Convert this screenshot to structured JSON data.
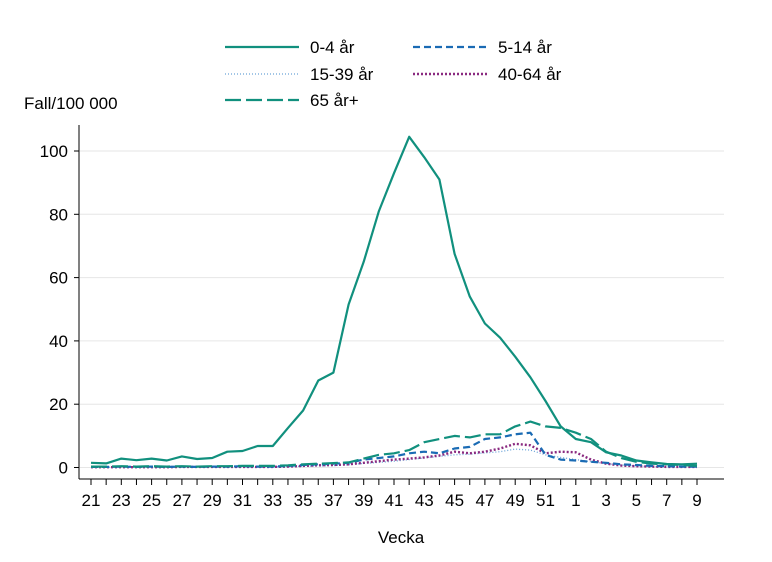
{
  "chart_data": {
    "type": "line",
    "title": "",
    "ylabel": "Fall/100 000",
    "xlabel": "Vecka",
    "ylim": [
      -3,
      110
    ],
    "yticks": [
      0,
      20,
      40,
      60,
      80,
      100
    ],
    "grid": true,
    "legend_position": "top",
    "categories": [
      "21",
      "22",
      "23",
      "24",
      "25",
      "26",
      "27",
      "28",
      "29",
      "30",
      "31",
      "32",
      "33",
      "34",
      "35",
      "36",
      "37",
      "38",
      "39",
      "40",
      "41",
      "42",
      "43",
      "44",
      "45",
      "46",
      "47",
      "48",
      "49",
      "50",
      "51",
      "52",
      "1",
      "2",
      "3",
      "4",
      "5",
      "6",
      "7",
      "8",
      "9"
    ],
    "xtick_labels": [
      "21",
      "23",
      "25",
      "27",
      "29",
      "31",
      "33",
      "35",
      "37",
      "39",
      "41",
      "43",
      "45",
      "47",
      "49",
      "51",
      "1",
      "3",
      "5",
      "7",
      "9"
    ],
    "series": [
      {
        "name": "0-4 år",
        "color": "#11907e",
        "dash": "solid",
        "values": [
          1.5,
          1.3,
          2.8,
          2.3,
          2.8,
          2.2,
          3.5,
          2.7,
          3.0,
          5.0,
          5.2,
          6.8,
          6.8,
          12.5,
          18.0,
          27.5,
          30.0,
          51.5,
          65.0,
          81.0,
          93.0,
          104.5,
          98.0,
          91.0,
          67.5,
          54.0,
          45.5,
          41.0,
          35.0,
          28.5,
          21.0,
          13.0,
          9.0,
          8.0,
          4.8,
          3.8,
          2.2,
          1.6,
          1.1,
          1.0,
          1.2
        ]
      },
      {
        "name": "5-14 år",
        "color": "#1a6bb4",
        "dash": "dashed",
        "values": [
          0.2,
          0.2,
          0.3,
          0.2,
          0.3,
          0.2,
          0.3,
          0.2,
          0.3,
          0.3,
          0.4,
          0.3,
          0.3,
          0.5,
          0.8,
          1.0,
          1.2,
          1.5,
          2.5,
          3.0,
          3.5,
          4.5,
          5.0,
          4.5,
          6.0,
          6.5,
          9.0,
          9.5,
          10.5,
          11.0,
          4.0,
          2.5,
          2.2,
          1.8,
          1.5,
          1.0,
          0.8,
          0.5,
          0.4,
          0.3,
          0.3
        ]
      },
      {
        "name": "15-39 år",
        "color": "#6aa3d8",
        "dash": "dotted",
        "values": [
          0.1,
          0.1,
          0.2,
          0.1,
          0.2,
          0.1,
          0.2,
          0.1,
          0.2,
          0.2,
          0.2,
          0.2,
          0.2,
          0.3,
          0.4,
          0.5,
          0.6,
          0.9,
          1.3,
          1.6,
          2.0,
          2.5,
          3.0,
          3.5,
          4.0,
          4.2,
          4.6,
          5.0,
          5.8,
          5.5,
          4.0,
          3.2,
          2.5,
          1.8,
          1.2,
          0.8,
          0.5,
          0.3,
          0.3,
          0.2,
          0.2
        ]
      },
      {
        "name": "40-64 år",
        "color": "#8a2a80",
        "dash": "densedot",
        "values": [
          0.1,
          0.1,
          0.1,
          0.1,
          0.1,
          0.1,
          0.2,
          0.2,
          0.2,
          0.2,
          0.2,
          0.2,
          0.2,
          0.3,
          0.5,
          0.7,
          0.8,
          1.0,
          1.5,
          2.0,
          2.5,
          2.8,
          3.2,
          3.8,
          5.0,
          4.5,
          5.0,
          6.0,
          7.5,
          7.0,
          4.5,
          5.0,
          4.8,
          2.5,
          1.2,
          0.6,
          0.4,
          0.3,
          0.2,
          0.2,
          0.2
        ]
      },
      {
        "name": "65 år+",
        "color": "#11907e",
        "dash": "longdash",
        "values": [
          0.3,
          0.3,
          0.4,
          0.3,
          0.4,
          0.3,
          0.4,
          0.3,
          0.4,
          0.4,
          0.5,
          0.5,
          0.5,
          0.7,
          1.0,
          1.2,
          1.4,
          1.6,
          2.8,
          4.0,
          4.5,
          5.5,
          8.0,
          9.0,
          10.0,
          9.5,
          10.5,
          10.5,
          13.0,
          14.5,
          13.0,
          12.5,
          11.0,
          9.0,
          5.0,
          3.0,
          1.8,
          1.2,
          1.0,
          0.8,
          0.5
        ]
      }
    ]
  }
}
